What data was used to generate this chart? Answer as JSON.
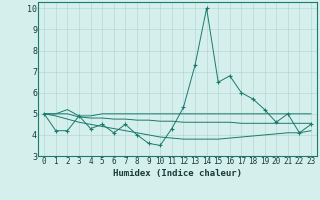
{
  "title": "",
  "xlabel": "Humidex (Indice chaleur)",
  "ylabel": "",
  "xlim": [
    -0.5,
    23.5
  ],
  "ylim": [
    3,
    10.3
  ],
  "yticks": [
    3,
    4,
    5,
    6,
    7,
    8,
    9,
    10
  ],
  "xticks": [
    0,
    1,
    2,
    3,
    4,
    5,
    6,
    7,
    8,
    9,
    10,
    11,
    12,
    13,
    14,
    15,
    16,
    17,
    18,
    19,
    20,
    21,
    22,
    23
  ],
  "bg_color": "#d5efec",
  "line_color": "#1a7a6e",
  "grid_color": "#b8d8d4",
  "series": {
    "main": {
      "x": [
        0,
        1,
        2,
        3,
        4,
        5,
        6,
        7,
        8,
        9,
        10,
        11,
        12,
        13,
        14,
        15,
        16,
        17,
        18,
        19,
        20,
        21,
        22,
        23
      ],
      "y": [
        5.0,
        4.2,
        4.2,
        4.9,
        4.3,
        4.5,
        4.1,
        4.5,
        4.0,
        3.6,
        3.5,
        4.3,
        5.3,
        7.3,
        10.0,
        6.5,
        6.8,
        6.0,
        5.7,
        5.2,
        4.6,
        5.0,
        4.1,
        4.5
      ]
    },
    "upper": {
      "x": [
        0,
        1,
        2,
        3,
        4,
        5,
        6,
        7,
        8,
        9,
        10,
        11,
        12,
        13,
        14,
        15,
        16,
        17,
        18,
        19,
        20,
        21,
        22,
        23
      ],
      "y": [
        5.0,
        5.0,
        5.2,
        4.9,
        4.9,
        5.0,
        5.0,
        5.0,
        5.0,
        5.0,
        5.0,
        5.0,
        5.0,
        5.0,
        5.0,
        5.0,
        5.0,
        5.0,
        5.0,
        5.0,
        5.0,
        5.0,
        5.0,
        5.0
      ]
    },
    "mid": {
      "x": [
        0,
        1,
        2,
        3,
        4,
        5,
        6,
        7,
        8,
        9,
        10,
        11,
        12,
        13,
        14,
        15,
        16,
        17,
        18,
        19,
        20,
        21,
        22,
        23
      ],
      "y": [
        5.0,
        5.0,
        5.0,
        4.85,
        4.8,
        4.8,
        4.75,
        4.75,
        4.7,
        4.7,
        4.65,
        4.65,
        4.6,
        4.6,
        4.6,
        4.6,
        4.6,
        4.55,
        4.55,
        4.55,
        4.55,
        4.55,
        4.55,
        4.55
      ]
    },
    "lower": {
      "x": [
        0,
        1,
        2,
        3,
        4,
        5,
        6,
        7,
        8,
        9,
        10,
        11,
        12,
        13,
        14,
        15,
        16,
        17,
        18,
        19,
        20,
        21,
        22,
        23
      ],
      "y": [
        5.0,
        4.9,
        4.75,
        4.6,
        4.5,
        4.4,
        4.3,
        4.2,
        4.1,
        4.0,
        3.9,
        3.85,
        3.8,
        3.8,
        3.8,
        3.8,
        3.85,
        3.9,
        3.95,
        4.0,
        4.05,
        4.1,
        4.1,
        4.2
      ]
    }
  }
}
